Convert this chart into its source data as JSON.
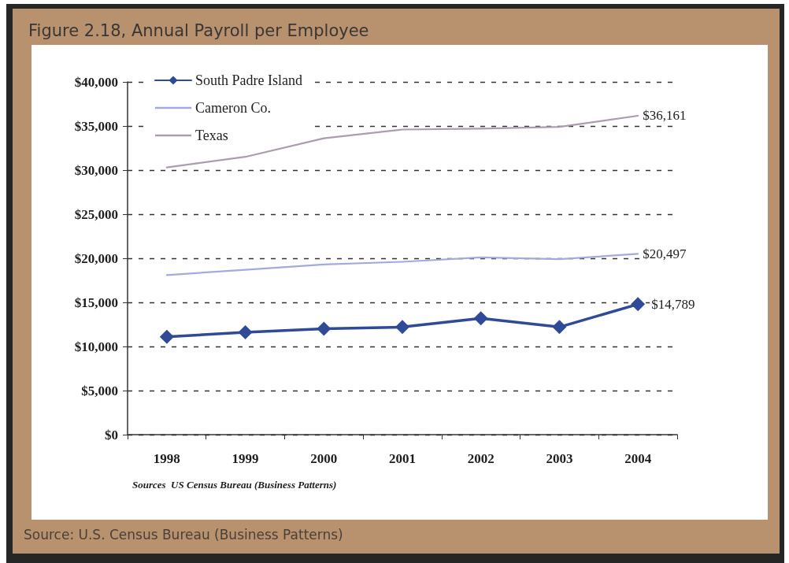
{
  "chart_data": {
    "type": "line",
    "title": "Figure 2.18, Annual Payroll per Employee",
    "categories": [
      "1998",
      "1999",
      "2000",
      "2001",
      "2002",
      "2003",
      "2004"
    ],
    "series": [
      {
        "name": "South Padre Island",
        "color": "#2f4a96",
        "marker": "diamond",
        "values": [
          11100,
          11600,
          12000,
          12200,
          13200,
          12200,
          14789
        ],
        "value_labels": [
          null,
          null,
          null,
          null,
          null,
          null,
          "$14,789"
        ]
      },
      {
        "name": "Cameron Co.",
        "color": "#a3abdc",
        "marker": "none",
        "values": [
          18100,
          18700,
          19300,
          19600,
          20100,
          19900,
          20497
        ],
        "value_labels": [
          null,
          null,
          null,
          null,
          null,
          null,
          "$20,497"
        ]
      },
      {
        "name": "Texas",
        "color": "#ab9cae",
        "marker": "none",
        "values": [
          30300,
          31500,
          33600,
          34600,
          34700,
          34900,
          36161
        ],
        "value_labels": [
          null,
          null,
          null,
          null,
          null,
          null,
          "$36,161"
        ]
      }
    ],
    "ylim": [
      0,
      40000
    ],
    "yticks": [
      {
        "value": 0,
        "label": "$0"
      },
      {
        "value": 5000,
        "label": "$5,000"
      },
      {
        "value": 10000,
        "label": "$10,000"
      },
      {
        "value": 15000,
        "label": "$15,000"
      },
      {
        "value": 20000,
        "label": "$20,000"
      },
      {
        "value": 25000,
        "label": "$25,000"
      },
      {
        "value": 30000,
        "label": "$30,000"
      },
      {
        "value": 35000,
        "label": "$35,000"
      },
      {
        "value": 40000,
        "label": "$40,000"
      }
    ],
    "grid": "y",
    "legend": "top left",
    "line_style": "solid",
    "annotations": [
      "Sources  US Census Bureau (Business Patterns)",
      "Source: U.S. Census Bureau (Business Patterns)"
    ]
  }
}
